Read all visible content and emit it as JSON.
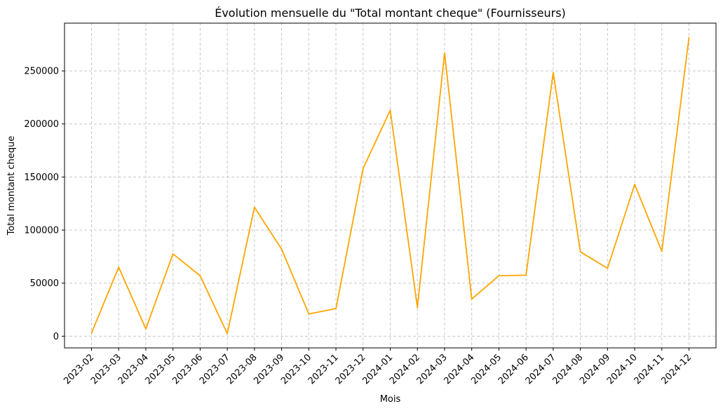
{
  "chart_data": {
    "type": "line",
    "title": "Évolution mensuelle du \"Total montant cheque\" (Fournisseurs)",
    "xlabel": "Mois",
    "ylabel": "Total montant cheque",
    "categories": [
      "2023-02",
      "2023-03",
      "2023-04",
      "2023-05",
      "2023-06",
      "2023-07",
      "2023-08",
      "2023-09",
      "2023-10",
      "2023-11",
      "2023-12",
      "2024-01",
      "2024-02",
      "2024-03",
      "2024-04",
      "2024-05",
      "2024-06",
      "2024-07",
      "2024-08",
      "2024-09",
      "2024-10",
      "2024-11",
      "2024-12"
    ],
    "series": [
      {
        "values": [
          3000,
          65000,
          7000,
          77500,
          57000,
          2500,
          121500,
          82000,
          21000,
          26000,
          158000,
          213000,
          27000,
          267000,
          35000,
          57000,
          57500,
          248500,
          79500,
          64000,
          143000,
          80000,
          281500
        ],
        "color": "#ffa500"
      }
    ],
    "yticks": [
      0,
      50000,
      100000,
      150000,
      200000,
      250000
    ],
    "ylim": [
      -11000,
      295000
    ],
    "grid": true,
    "grid_style": "dashed",
    "legend": "none"
  }
}
